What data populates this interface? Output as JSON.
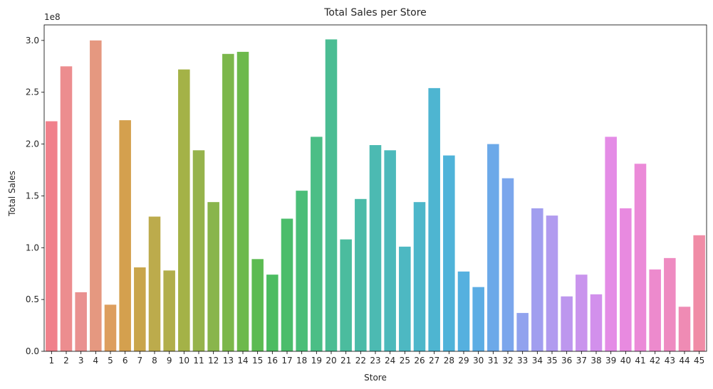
{
  "chart_data": {
    "type": "bar",
    "title": "Total Sales per Store",
    "xlabel": "Store",
    "ylabel": "Total Sales",
    "y_offset_label": "1e8",
    "ylim": [
      0,
      3.15
    ],
    "y_ticks": [
      "0.0",
      "0.5",
      "1.0",
      "1.5",
      "2.0",
      "2.5",
      "3.0"
    ],
    "y_tick_values": [
      0,
      0.5,
      1.0,
      1.5,
      2.0,
      2.5,
      3.0
    ],
    "grid": false,
    "categories": [
      "1",
      "2",
      "3",
      "4",
      "5",
      "6",
      "7",
      "8",
      "9",
      "10",
      "11",
      "12",
      "13",
      "14",
      "15",
      "16",
      "17",
      "18",
      "19",
      "20",
      "21",
      "22",
      "23",
      "24",
      "25",
      "26",
      "27",
      "28",
      "29",
      "30",
      "31",
      "32",
      "33",
      "34",
      "35",
      "36",
      "37",
      "38",
      "39",
      "40",
      "41",
      "42",
      "43",
      "44",
      "45"
    ],
    "values": [
      2.22,
      2.75,
      0.57,
      3.0,
      0.45,
      2.23,
      0.81,
      1.3,
      0.78,
      2.72,
      1.94,
      1.44,
      2.87,
      2.89,
      0.89,
      0.74,
      1.28,
      1.55,
      2.07,
      3.01,
      1.08,
      1.47,
      1.99,
      1.94,
      1.01,
      1.44,
      2.54,
      1.89,
      0.77,
      0.62,
      2.0,
      1.67,
      0.37,
      1.38,
      1.31,
      0.53,
      0.74,
      0.55,
      2.07,
      1.38,
      1.81,
      0.79,
      0.9,
      0.43,
      1.12
    ],
    "colors": [
      "#f0808b",
      "#ec8d8f",
      "#e99190",
      "#e59880",
      "#dd9e5e",
      "#d4a04e",
      "#c9a54b",
      "#bcab4c",
      "#b1ae4b",
      "#a4b247",
      "#96b34c",
      "#89b54c",
      "#7cb74b",
      "#6db94c",
      "#5cbb52",
      "#4cbc61",
      "#4bbd6b",
      "#4bbe78",
      "#4bbe86",
      "#4bbd93",
      "#4bbc9e",
      "#4bbba8",
      "#4cbab2",
      "#4cb9bb",
      "#4db8c2",
      "#4db7ca",
      "#4eb5d1",
      "#4fb3d9",
      "#55b0df",
      "#5cade4",
      "#6ca9e9",
      "#7ba6ec",
      "#91a2ee",
      "#a19eef",
      "#b19bef",
      "#bd97ee",
      "#c994ed",
      "#d290ec",
      "#e48ce6",
      "#e88ae0",
      "#eb8ad8",
      "#ed8acd",
      "#ee8bc1",
      "#ef8bb4",
      "#f08ca6"
    ]
  }
}
